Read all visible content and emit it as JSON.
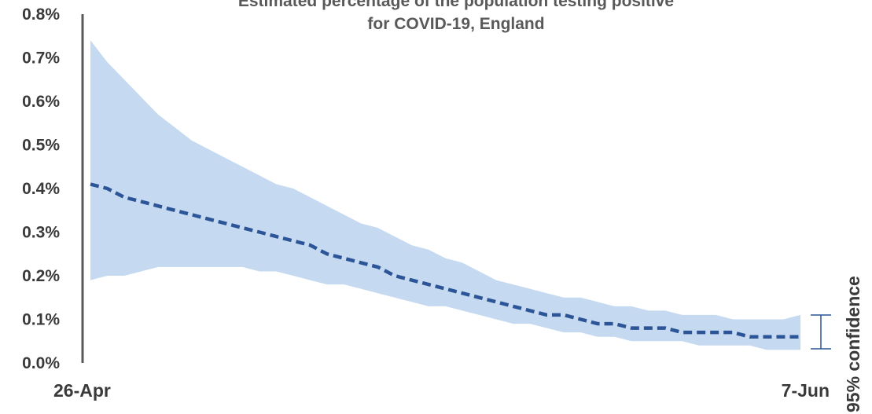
{
  "chart_data": {
    "type": "area",
    "title_lines": [
      "Estimated percentage of the population testing positive",
      "for COVID-19, England"
    ],
    "xlabel": "",
    "ylabel": "",
    "ylim": [
      0,
      0.8
    ],
    "yticks": [
      {
        "value": 0.0,
        "label": "0.0%"
      },
      {
        "value": 0.1,
        "label": "0.1%"
      },
      {
        "value": 0.2,
        "label": "0.2%"
      },
      {
        "value": 0.3,
        "label": "0.3%"
      },
      {
        "value": 0.4,
        "label": "0.4%"
      },
      {
        "value": 0.5,
        "label": "0.5%"
      },
      {
        "value": 0.6,
        "label": "0.6%"
      },
      {
        "value": 0.7,
        "label": "0.7%"
      },
      {
        "value": 0.8,
        "label": "0.8%"
      }
    ],
    "x_start_label": "26-Apr",
    "x_end_label": "7-Jun",
    "x": [
      "26-Apr",
      "27-Apr",
      "28-Apr",
      "29-Apr",
      "30-Apr",
      "1-May",
      "2-May",
      "3-May",
      "4-May",
      "5-May",
      "6-May",
      "7-May",
      "8-May",
      "9-May",
      "10-May",
      "11-May",
      "12-May",
      "13-May",
      "14-May",
      "15-May",
      "16-May",
      "17-May",
      "18-May",
      "19-May",
      "20-May",
      "21-May",
      "22-May",
      "23-May",
      "24-May",
      "25-May",
      "26-May",
      "27-May",
      "28-May",
      "29-May",
      "30-May",
      "31-May",
      "1-Jun",
      "2-Jun",
      "3-Jun",
      "4-Jun",
      "5-Jun",
      "6-Jun",
      "7-Jun"
    ],
    "series": [
      {
        "role": "estimate",
        "values": [
          0.41,
          0.4,
          0.38,
          0.37,
          0.36,
          0.35,
          0.34,
          0.33,
          0.32,
          0.31,
          0.3,
          0.29,
          0.28,
          0.27,
          0.25,
          0.24,
          0.23,
          0.22,
          0.2,
          0.19,
          0.18,
          0.17,
          0.16,
          0.15,
          0.14,
          0.13,
          0.12,
          0.11,
          0.11,
          0.1,
          0.09,
          0.09,
          0.08,
          0.08,
          0.08,
          0.07,
          0.07,
          0.07,
          0.07,
          0.06,
          0.06,
          0.06,
          0.06
        ]
      },
      {
        "role": "lower_95",
        "values": [
          0.19,
          0.2,
          0.2,
          0.21,
          0.22,
          0.22,
          0.22,
          0.22,
          0.22,
          0.22,
          0.21,
          0.21,
          0.2,
          0.19,
          0.18,
          0.18,
          0.17,
          0.16,
          0.15,
          0.14,
          0.13,
          0.13,
          0.12,
          0.11,
          0.1,
          0.09,
          0.09,
          0.08,
          0.07,
          0.07,
          0.06,
          0.06,
          0.05,
          0.05,
          0.05,
          0.05,
          0.04,
          0.04,
          0.04,
          0.04,
          0.03,
          0.03,
          0.03
        ]
      },
      {
        "role": "upper_95",
        "values": [
          0.74,
          0.69,
          0.65,
          0.61,
          0.57,
          0.54,
          0.51,
          0.49,
          0.47,
          0.45,
          0.43,
          0.41,
          0.4,
          0.38,
          0.36,
          0.34,
          0.32,
          0.31,
          0.29,
          0.27,
          0.26,
          0.24,
          0.23,
          0.21,
          0.19,
          0.18,
          0.17,
          0.16,
          0.15,
          0.15,
          0.14,
          0.13,
          0.13,
          0.12,
          0.12,
          0.11,
          0.11,
          0.11,
          0.1,
          0.1,
          0.1,
          0.1,
          0.11
        ]
      }
    ],
    "legend": {
      "ci_label": "95% confidence",
      "placement": "right"
    },
    "grid": false,
    "colors": {
      "estimate_line": "#2c5597",
      "ci_band": "#c5d9f1",
      "axis": "#595959",
      "legend_marker": "#2c5597"
    }
  }
}
